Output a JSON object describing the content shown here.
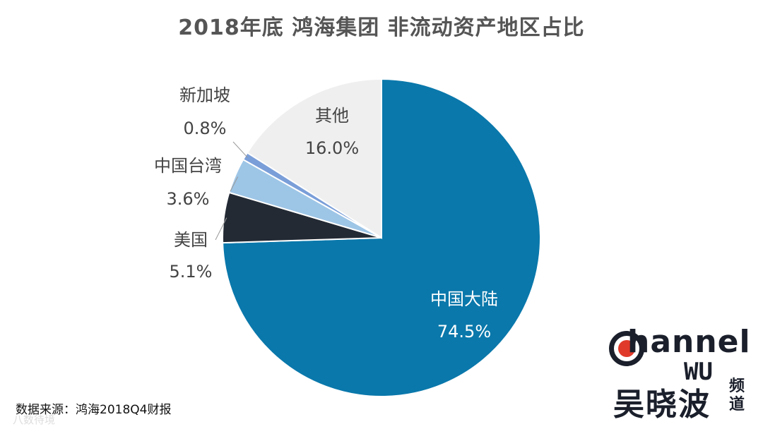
{
  "title": "2018年底 鸿海集团 非流动资产地区占比",
  "source": "数据来源：鸿海2018Q4财报",
  "watermark": "八数待境",
  "logo": {
    "word": "hannel",
    "sub": "WU",
    "cn": "吴晓波",
    "cn_small": "频道",
    "ring_color": "#1a1f2b",
    "dot_color": "#e03a2a"
  },
  "chart_data": {
    "type": "pie",
    "title": "2018年底 鸿海集团 非流动资产地区占比",
    "slices": [
      {
        "label": "中国大陆",
        "value": 74.5,
        "display": "74.5%",
        "color": "#0a78ab",
        "label_placement": "inside",
        "label_color": "#ffffff"
      },
      {
        "label": "美国",
        "value": 5.1,
        "display": "5.1%",
        "color": "#232a34",
        "label_placement": "outside",
        "label_color": "#444444"
      },
      {
        "label": "中国台湾",
        "value": 3.6,
        "display": "3.6%",
        "color": "#9dc5e6",
        "label_placement": "outside",
        "label_color": "#444444"
      },
      {
        "label": "新加坡",
        "value": 0.8,
        "display": "0.8%",
        "color": "#7a9ed8",
        "label_placement": "outside",
        "label_color": "#444444"
      },
      {
        "label": "其他",
        "value": 16.0,
        "display": "16.0%",
        "color": "#efefef",
        "label_placement": "inside",
        "label_color": "#444444"
      }
    ]
  }
}
